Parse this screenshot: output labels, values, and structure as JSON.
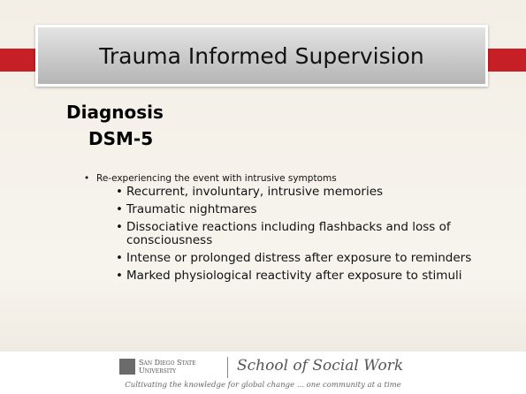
{
  "header": {
    "title": "Trauma Informed Supervision"
  },
  "heading": "Diagnosis",
  "subheading": "DSM-5",
  "bullets": [
    {
      "text": "Re-experiencing the event with intrusive symptoms",
      "subbullets": [
        "Recurrent, involuntary, intrusive memories",
        "Traumatic nightmares",
        "Dissociative reactions including flashbacks and loss of consciousness",
        "Intense or prolonged distress after exposure to reminders",
        "Marked physiological reactivity after exposure to stimuli"
      ]
    }
  ],
  "footer": {
    "university": [
      "San Diego State",
      "University"
    ],
    "school": "School of Social Work",
    "tagline": "Cultivating the knowledge for global change ... one community at a time"
  }
}
